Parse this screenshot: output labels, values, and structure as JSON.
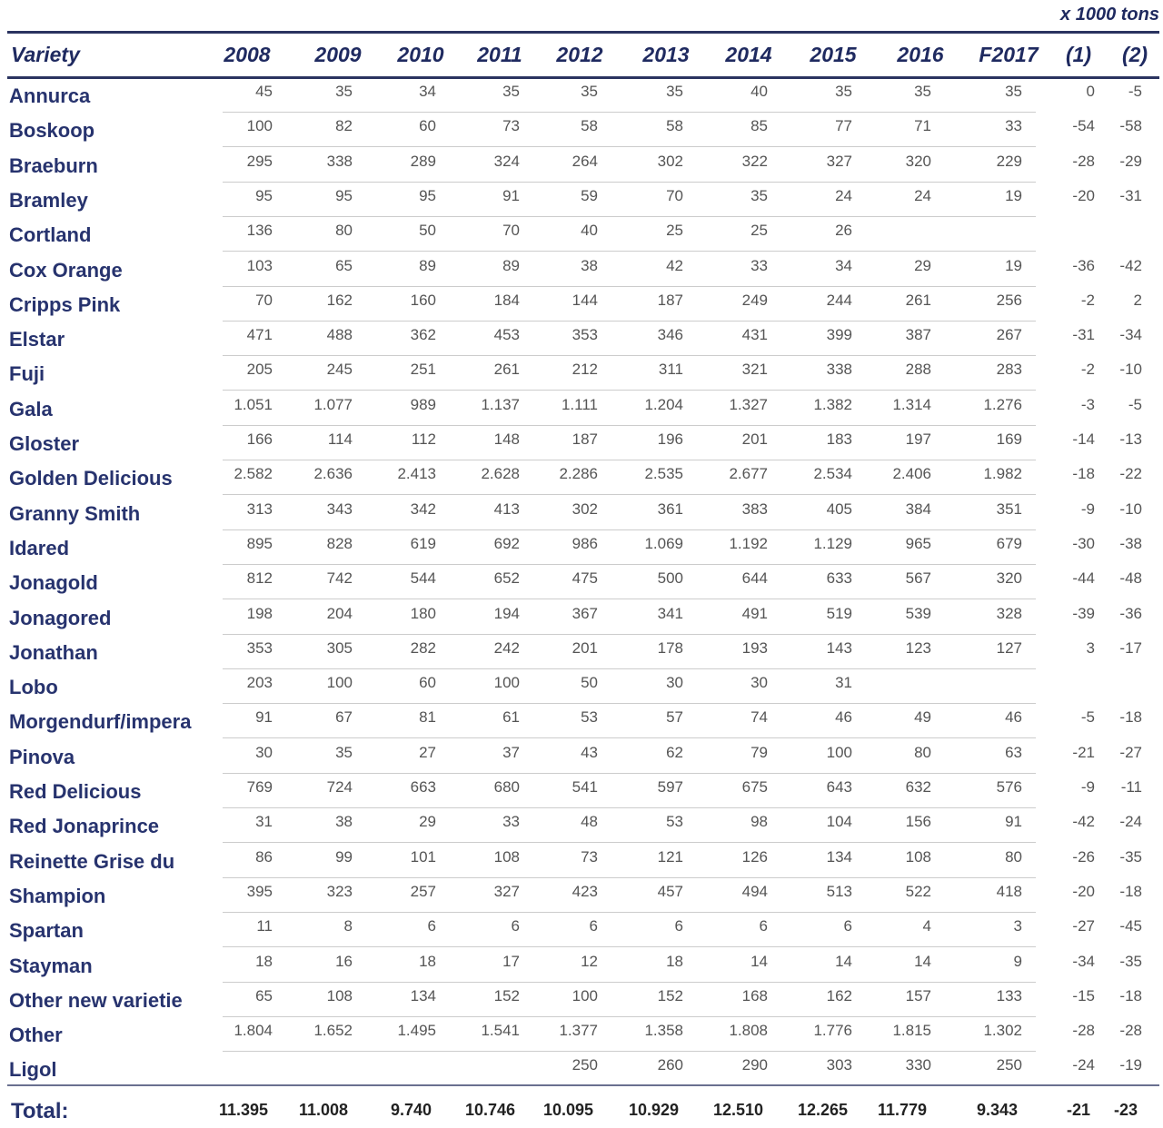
{
  "unit": "x 1000 tons",
  "table": {
    "header": [
      "Variety",
      "2008",
      "2009",
      "2010",
      "2011",
      "2012",
      "2013",
      "2014",
      "2015",
      "2016",
      "F2017",
      "(1)",
      "(2)"
    ],
    "rows": [
      [
        "Annurca",
        "45",
        "35",
        "34",
        "35",
        "35",
        "35",
        "40",
        "35",
        "35",
        "35",
        "0",
        "-5"
      ],
      [
        "Boskoop",
        "100",
        "82",
        "60",
        "73",
        "58",
        "58",
        "85",
        "77",
        "71",
        "33",
        "-54",
        "-58"
      ],
      [
        "Braeburn",
        "295",
        "338",
        "289",
        "324",
        "264",
        "302",
        "322",
        "327",
        "320",
        "229",
        "-28",
        "-29"
      ],
      [
        "Bramley",
        "95",
        "95",
        "95",
        "91",
        "59",
        "70",
        "35",
        "24",
        "24",
        "19",
        "-20",
        "-31"
      ],
      [
        "Cortland",
        "136",
        "80",
        "50",
        "70",
        "40",
        "25",
        "25",
        "26",
        null,
        null,
        null,
        null
      ],
      [
        "Cox Orange",
        "103",
        "65",
        "89",
        "89",
        "38",
        "42",
        "33",
        "34",
        "29",
        "19",
        "-36",
        "-42"
      ],
      [
        "Cripps Pink",
        "70",
        "162",
        "160",
        "184",
        "144",
        "187",
        "249",
        "244",
        "261",
        "256",
        "-2",
        "2"
      ],
      [
        "Elstar",
        "471",
        "488",
        "362",
        "453",
        "353",
        "346",
        "431",
        "399",
        "387",
        "267",
        "-31",
        "-34"
      ],
      [
        "Fuji",
        "205",
        "245",
        "251",
        "261",
        "212",
        "311",
        "321",
        "338",
        "288",
        "283",
        "-2",
        "-10"
      ],
      [
        "Gala",
        "1.051",
        "1.077",
        "989",
        "1.137",
        "1.111",
        "1.204",
        "1.327",
        "1.382",
        "1.314",
        "1.276",
        "-3",
        "-5"
      ],
      [
        "Gloster",
        "166",
        "114",
        "112",
        "148",
        "187",
        "196",
        "201",
        "183",
        "197",
        "169",
        "-14",
        "-13"
      ],
      [
        "Golden Delicious",
        "2.582",
        "2.636",
        "2.413",
        "2.628",
        "2.286",
        "2.535",
        "2.677",
        "2.534",
        "2.406",
        "1.982",
        "-18",
        "-22"
      ],
      [
        "Granny Smith",
        "313",
        "343",
        "342",
        "413",
        "302",
        "361",
        "383",
        "405",
        "384",
        "351",
        "-9",
        "-10"
      ],
      [
        "Idared",
        "895",
        "828",
        "619",
        "692",
        "986",
        "1.069",
        "1.192",
        "1.129",
        "965",
        "679",
        "-30",
        "-38"
      ],
      [
        "Jonagold",
        "812",
        "742",
        "544",
        "652",
        "475",
        "500",
        "644",
        "633",
        "567",
        "320",
        "-44",
        "-48"
      ],
      [
        "Jonagored",
        "198",
        "204",
        "180",
        "194",
        "367",
        "341",
        "491",
        "519",
        "539",
        "328",
        "-39",
        "-36"
      ],
      [
        "Jonathan",
        "353",
        "305",
        "282",
        "242",
        "201",
        "178",
        "193",
        "143",
        "123",
        "127",
        "3",
        "-17"
      ],
      [
        "Lobo",
        "203",
        "100",
        "60",
        "100",
        "50",
        "30",
        "30",
        "31",
        null,
        null,
        null,
        null
      ],
      [
        "Morgendurf/impera",
        "91",
        "67",
        "81",
        "61",
        "53",
        "57",
        "74",
        "46",
        "49",
        "46",
        "-5",
        "-18"
      ],
      [
        "Pinova",
        "30",
        "35",
        "27",
        "37",
        "43",
        "62",
        "79",
        "100",
        "80",
        "63",
        "-21",
        "-27"
      ],
      [
        "Red Delicious",
        "769",
        "724",
        "663",
        "680",
        "541",
        "597",
        "675",
        "643",
        "632",
        "576",
        "-9",
        "-11"
      ],
      [
        "Red Jonaprince",
        "31",
        "38",
        "29",
        "33",
        "48",
        "53",
        "98",
        "104",
        "156",
        "91",
        "-42",
        "-24"
      ],
      [
        "Reinette Grise du",
        "86",
        "99",
        "101",
        "108",
        "73",
        "121",
        "126",
        "134",
        "108",
        "80",
        "-26",
        "-35"
      ],
      [
        "Shampion",
        "395",
        "323",
        "257",
        "327",
        "423",
        "457",
        "494",
        "513",
        "522",
        "418",
        "-20",
        "-18"
      ],
      [
        "Spartan",
        "11",
        "8",
        "6",
        "6",
        "6",
        "6",
        "6",
        "6",
        "4",
        "3",
        "-27",
        "-45"
      ],
      [
        "Stayman",
        "18",
        "16",
        "18",
        "17",
        "12",
        "18",
        "14",
        "14",
        "14",
        "9",
        "-34",
        "-35"
      ],
      [
        "Other new varietie",
        "65",
        "108",
        "134",
        "152",
        "100",
        "152",
        "168",
        "162",
        "157",
        "133",
        "-15",
        "-18"
      ],
      [
        "Other",
        "1.804",
        "1.652",
        "1.495",
        "1.541",
        "1.377",
        "1.358",
        "1.808",
        "1.776",
        "1.815",
        "1.302",
        "-28",
        "-28"
      ],
      [
        "Ligol",
        null,
        null,
        null,
        null,
        "250",
        "260",
        "290",
        "303",
        "330",
        "250",
        "-24",
        "-19"
      ]
    ],
    "total": [
      "Total:",
      "11.395",
      "11.008",
      "9.740",
      "10.746",
      "10.095",
      "10.929",
      "12.510",
      "12.265",
      "11.779",
      "9.343",
      "-21",
      "-23"
    ]
  }
}
